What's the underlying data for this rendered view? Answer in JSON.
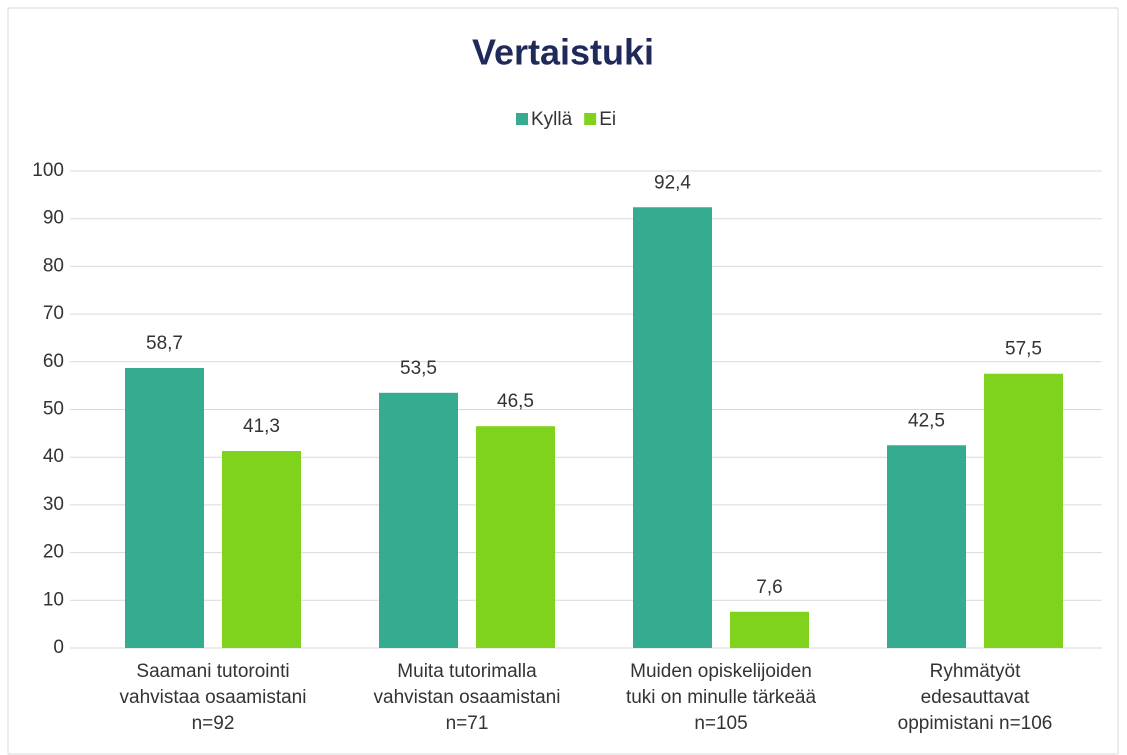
{
  "chart_data": {
    "type": "bar",
    "title": "Vertaistuki",
    "categories": [
      [
        "Saamani tutorointi",
        "vahvistaa osaamistani",
        "n=92"
      ],
      [
        "Muita tutorimalla",
        "vahvistan osaamistani",
        "n=71"
      ],
      [
        "Muiden opiskelijoiden",
        "tuki on minulle tärkeää",
        "n=105"
      ],
      [
        "Ryhmätyöt",
        "edesauttavat",
        "oppimistani n=106"
      ]
    ],
    "series": [
      {
        "name": "Kyllä",
        "color": "#35ab8f",
        "values": [
          58.7,
          53.5,
          92.4,
          42.5
        ],
        "value_labels": [
          "58,7",
          "53,5",
          "92,4",
          "42,5"
        ]
      },
      {
        "name": "Ei",
        "color": "#80d31c",
        "values": [
          41.3,
          46.5,
          7.6,
          57.5
        ],
        "value_labels": [
          "41,3",
          "46,5",
          "7,6",
          "57,5"
        ]
      }
    ],
    "ylim": [
      0,
      100
    ],
    "yticks": [
      0,
      10,
      20,
      30,
      40,
      50,
      60,
      70,
      80,
      90,
      100
    ],
    "grid": true,
    "legend": "top"
  }
}
